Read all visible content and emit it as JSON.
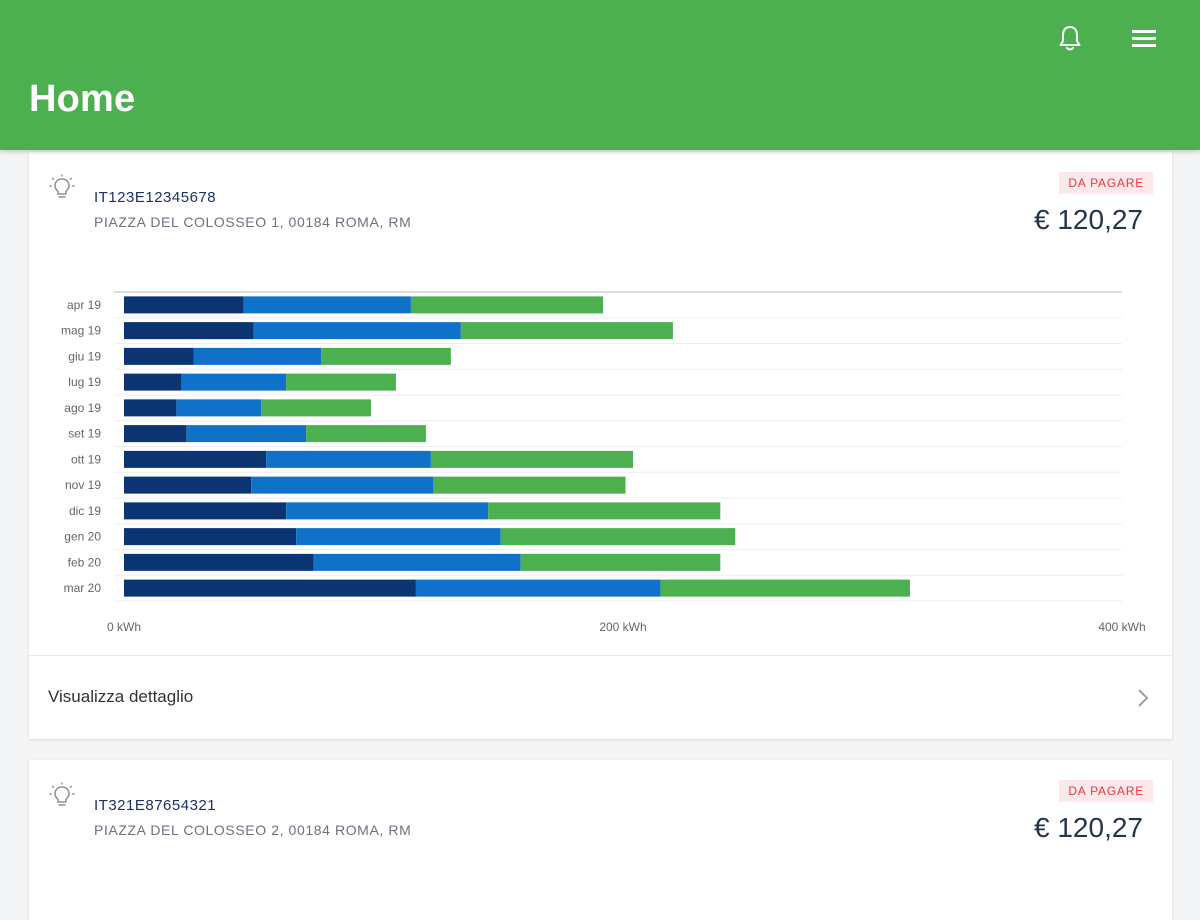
{
  "header": {
    "title": "Home",
    "bell_icon": "bell-icon",
    "menu_icon": "hamburger-menu-icon",
    "background": "#4caf50"
  },
  "cards": [
    {
      "icon": "lightbulb-icon",
      "code": "IT123E12345678",
      "address": "PIAZZA DEL COLOSSEO 1, 00184 ROMA, RM",
      "status": "DA PAGARE",
      "amount": "€ 120,27",
      "detail_label": "Visualizza dettaglio",
      "detail_icon": "chevron-right-icon"
    },
    {
      "icon": "lightbulb-icon",
      "code": "IT321E87654321",
      "address": "PIAZZA DEL COLOSSEO 2, 00184 ROMA, RM",
      "status": "DA PAGARE",
      "amount": "€ 120,27"
    }
  ],
  "chart_data": {
    "type": "bar",
    "orientation": "horizontal",
    "stacked": true,
    "categories": [
      "apr 19",
      "mag 19",
      "giu 19",
      "lug 19",
      "ago 19",
      "set 19",
      "ott 19",
      "nov 19",
      "dic 19",
      "gen 20",
      "feb 20",
      "mar 20"
    ],
    "series": [
      {
        "color": "#0b3472",
        "values": [
          48,
          52,
          28,
          23,
          21,
          25,
          57,
          51,
          65,
          69,
          76,
          117
        ]
      },
      {
        "color": "#1071c8",
        "values": [
          67,
          83,
          51,
          42,
          34,
          48,
          66,
          73,
          81,
          82,
          83,
          98
        ]
      },
      {
        "color": "#4caf50",
        "values": [
          77,
          85,
          52,
          44,
          44,
          48,
          81,
          77,
          93,
          94,
          80,
          100
        ]
      }
    ],
    "x_ticks": [
      "0 kWh",
      "200 kWh",
      "400 kWh"
    ],
    "xlim": [
      0,
      400
    ],
    "grid": true
  }
}
